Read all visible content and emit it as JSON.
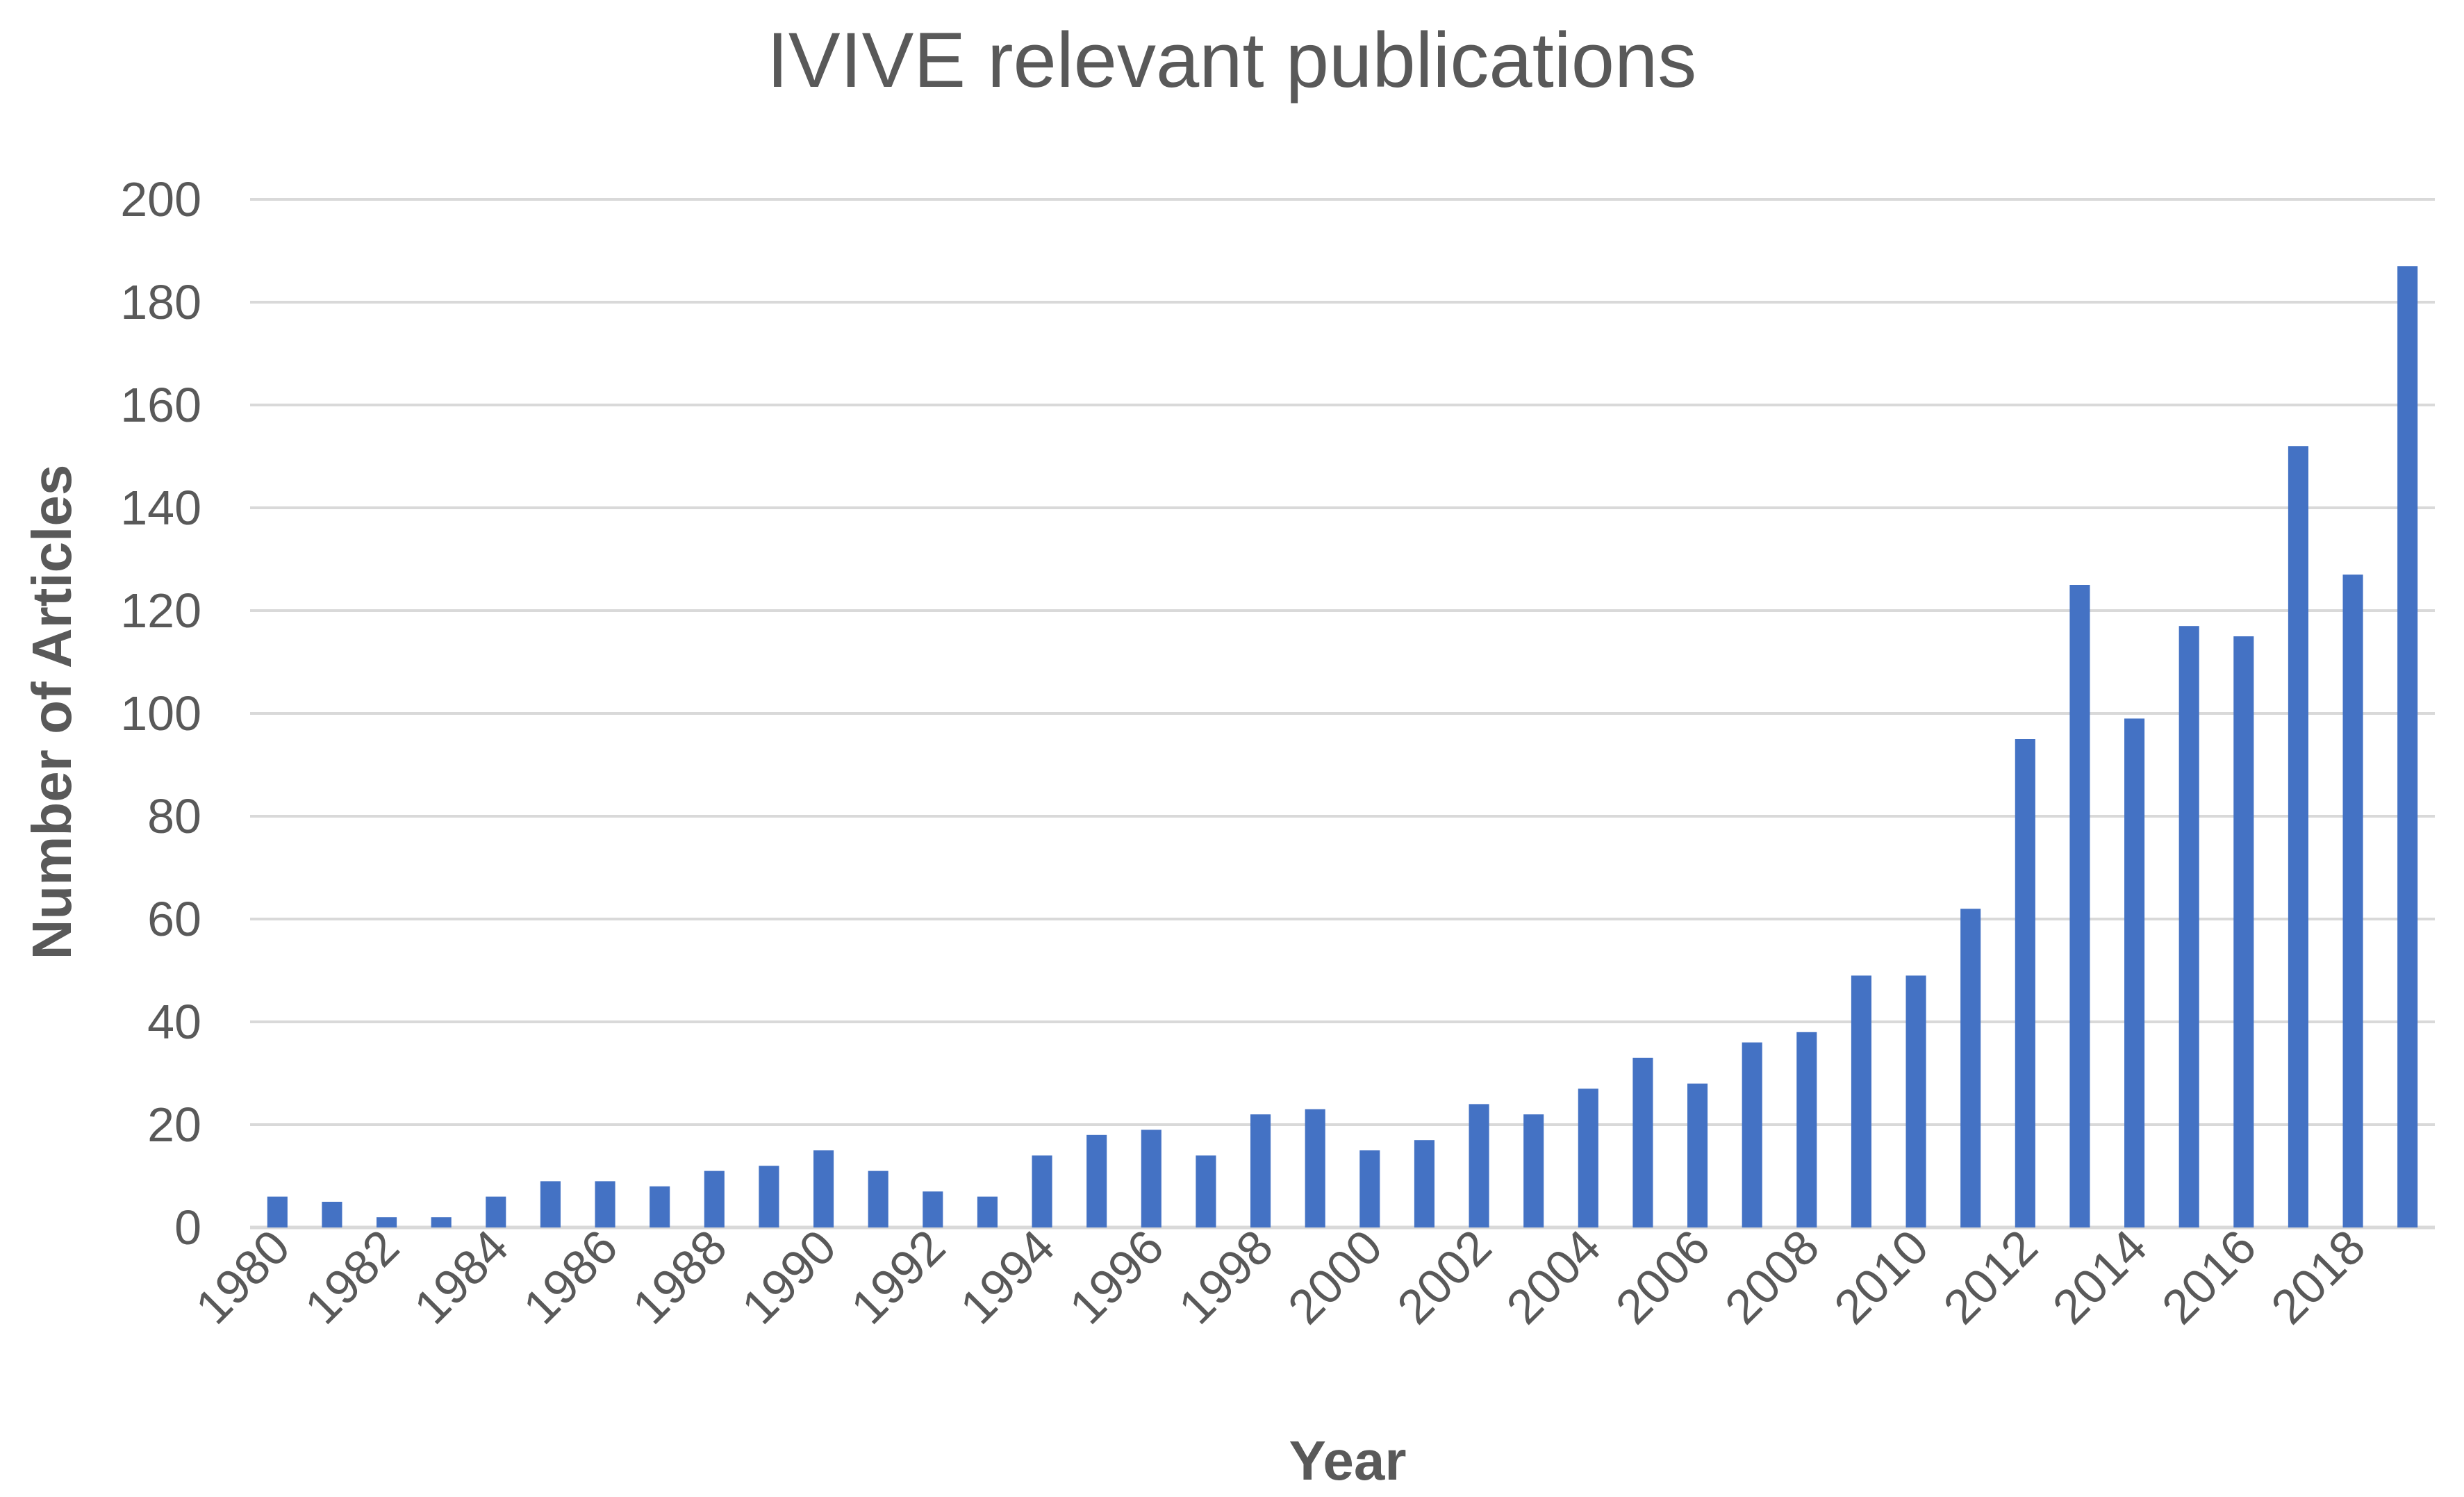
{
  "chart_data": {
    "type": "bar",
    "title": "IVIVE relevant publications",
    "xlabel": "Year",
    "ylabel": "Number of Articles",
    "categories": [
      "1980",
      "1981",
      "1982",
      "1983",
      "1984",
      "1985",
      "1986",
      "1987",
      "1988",
      "1989",
      "1990",
      "1991",
      "1992",
      "1993",
      "1994",
      "1995",
      "1996",
      "1997",
      "1998",
      "1999",
      "2000",
      "2001",
      "2002",
      "2003",
      "2004",
      "2005",
      "2006",
      "2007",
      "2008",
      "2009",
      "2010",
      "2011",
      "2012",
      "2013",
      "2014",
      "2015",
      "2016",
      "2017",
      "2018",
      "2019"
    ],
    "x_tick_labels": [
      "1980",
      "1982",
      "1984",
      "1986",
      "1988",
      "1990",
      "1992",
      "1994",
      "1996",
      "1998",
      "2000",
      "2002",
      "2004",
      "2006",
      "2008",
      "2010",
      "2012",
      "2014",
      "2016",
      "2018"
    ],
    "values": [
      6,
      5,
      2,
      2,
      6,
      9,
      9,
      8,
      11,
      12,
      15,
      11,
      7,
      6,
      14,
      18,
      19,
      14,
      22,
      23,
      15,
      17,
      24,
      22,
      27,
      33,
      28,
      36,
      38,
      49,
      49,
      62,
      95,
      125,
      99,
      117,
      115,
      152,
      127,
      187
    ],
    "ylim": [
      0,
      200
    ],
    "y_ticks": [
      "0",
      "20",
      "40",
      "60",
      "80",
      "100",
      "120",
      "140",
      "160",
      "180",
      "200"
    ],
    "grid": true,
    "legend": "none",
    "colors": {
      "bar": "#4472C4",
      "grid": "#D9D9D9",
      "text": "#595959"
    }
  }
}
